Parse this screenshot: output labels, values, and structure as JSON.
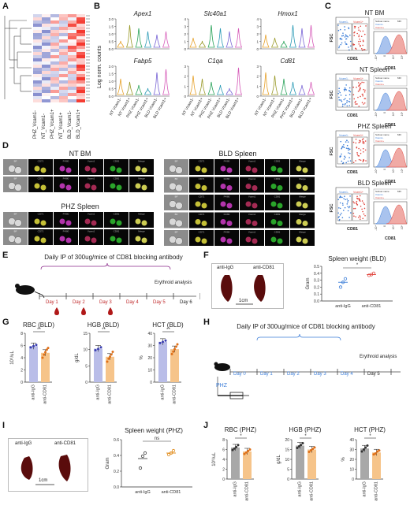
{
  "panel_letters": {
    "A": "A",
    "B": "B",
    "C": "C",
    "D": "D",
    "E": "E",
    "F": "F",
    "G": "G",
    "H": "H",
    "I": "I",
    "J": "J"
  },
  "panelA": {
    "columns": [
      "PHZ_Vcam1-",
      "NT_Vcam1-",
      "PHZ_Vcam1+",
      "NT_Vcam1+",
      "BLD_Vcam1-",
      "BLD_Vcam1+"
    ]
  },
  "panelB": {
    "ylabel": "Log norm. counts",
    "genes": [
      "Apex1",
      "Slc40a1",
      "Hmox1",
      "Fabp5",
      "C1qa",
      "Cd81"
    ],
    "groups": [
      "NT Vcam1-",
      "NT Vcam1+",
      "PHZ Vcam1-",
      "PHZ Vcam1+",
      "BLD Vcam1-",
      "BLD Vcam1+"
    ],
    "yticks": [
      [
        "0.0",
        "0.5",
        "1.0",
        "1.5",
        "2.0"
      ],
      [
        "0",
        "1",
        "2",
        "3",
        "4"
      ],
      [
        "0",
        "1",
        "2",
        "3",
        "4"
      ],
      [
        "0.0",
        "0.5",
        "1.0",
        "1.5",
        "2.0"
      ],
      [
        "0",
        "1",
        "2",
        "3"
      ],
      [
        "0",
        "1",
        "2",
        "3"
      ]
    ],
    "colors": [
      "#e6a12a",
      "#9a9a2a",
      "#2aa35a",
      "#2a9ab5",
      "#7a66d6",
      "#d65ab8"
    ]
  },
  "panelC": {
    "titles": [
      "NT BM",
      "NT Spleen",
      "PHZ Spleen",
      "BLD Spleen"
    ],
    "x_axis": "CD81",
    "y_axis": "FSC",
    "gate_neg": "Vcam1-",
    "gate_pos": "Vcam1+",
    "hist_ticks": [
      "-10⁴",
      "0",
      "10⁴",
      "10⁵"
    ],
    "table_header": [
      "Subset name",
      "MFI"
    ],
    "colors": {
      "neg": "#3b7dd8",
      "pos": "#e0443c"
    }
  },
  "panelD": {
    "titles": [
      "NT BM",
      "BLD Spleen",
      "PHZ Spleen"
    ],
    "channels": [
      "BF",
      "CD71",
      "F4/80",
      "Vcam1",
      "CD81",
      "Merge"
    ]
  },
  "panelE": {
    "title": "Daily IP of 300ug/mice of CD81 blocking antibody",
    "days": [
      "Day 1",
      "Day 2",
      "Day 3",
      "Day 4",
      "Day 5",
      "Day 6"
    ],
    "analysis": "Erythroid analysis"
  },
  "panelF": {
    "photo_labels": [
      "anti-IgG",
      "anti-CD81"
    ],
    "scale": "1cm",
    "chart_data": {
      "type": "scatter",
      "title": "Spleen weight (BLD)",
      "ylabel": "Gram",
      "categories": [
        "anti-IgG",
        "anti-CD81"
      ],
      "yticks": [
        "0.0",
        "0.1",
        "0.2",
        "0.3",
        "0.4",
        "0.5"
      ],
      "ylim": [
        0,
        0.5
      ],
      "points": [
        [
          0.2,
          0.27,
          0.32
        ],
        [
          0.37,
          0.38,
          0.4
        ]
      ],
      "means": [
        0.27,
        0.38
      ],
      "significance": "*",
      "colors": [
        "#3b7dd8",
        "#e0443c"
      ]
    }
  },
  "panelG": {
    "chart_data": [
      {
        "type": "bar",
        "title": "RBC (BLD)",
        "ylabel": "10⁹/uL",
        "categories": [
          "anti-IgG",
          "anti-CD81"
        ],
        "yticks": [
          "0",
          "2",
          "4",
          "6",
          "8"
        ],
        "ylim": [
          0,
          8
        ],
        "values": [
          5.9,
          4.8
        ],
        "points": [
          [
            5.7,
            5.9,
            6.1
          ],
          [
            4.0,
            4.5,
            4.9,
            5.3,
            5.6
          ]
        ],
        "significance": "**"
      },
      {
        "type": "bar",
        "title": "HGB (BLD)",
        "ylabel": "g/dL",
        "categories": [
          "anti-IgG",
          "anti-CD81"
        ],
        "yticks": [
          "0",
          "5",
          "10",
          "15"
        ],
        "ylim": [
          0,
          15
        ],
        "values": [
          10.3,
          7.8
        ],
        "points": [
          [
            9.8,
            10.2,
            10.7
          ],
          [
            6.3,
            7.2,
            7.8,
            8.5,
            9.3
          ]
        ],
        "significance": "**"
      },
      {
        "type": "bar",
        "title": "HCT (BLD)",
        "ylabel": "%",
        "categories": [
          "anti-IgG",
          "anti-CD81"
        ],
        "yticks": [
          "0",
          "10",
          "20",
          "30",
          "40"
        ],
        "ylim": [
          0,
          40
        ],
        "values": [
          33,
          27
        ],
        "points": [
          [
            32,
            33,
            34
          ],
          [
            23,
            25,
            27,
            29,
            31
          ]
        ],
        "significance": "**"
      }
    ],
    "colors": [
      "#b9bde8",
      "#f6c48a"
    ],
    "dot_colors": [
      "#3b3fb0",
      "#e07018"
    ]
  },
  "panelH": {
    "title": "Daily IP of 300ug/mice of CD81 blocking antibody",
    "days": [
      "Day 0",
      "Day 1",
      "Day 2",
      "Day 3",
      "Day 4",
      "Day 5"
    ],
    "analysis": "Erythroid analysis",
    "drug": "PHZ"
  },
  "panelI": {
    "photo_labels": [
      "anti-IgG",
      "anti-CD81"
    ],
    "scale": "1cm",
    "chart_data": {
      "type": "scatter",
      "title": "Spleen weight (PHZ)",
      "ylabel": "Gram",
      "categories": [
        "anti-IgG",
        "anti-CD81"
      ],
      "yticks": [
        "0.0",
        "0.2",
        "0.4",
        "0.6"
      ],
      "ylim": [
        0,
        0.6
      ],
      "points": [
        [
          0.24,
          0.39,
          0.43
        ],
        [
          0.41,
          0.43,
          0.46
        ]
      ],
      "means": [
        0.36,
        0.43
      ],
      "significance": "ns",
      "colors": [
        "#444444",
        "#e08a18"
      ]
    }
  },
  "panelJ": {
    "chart_data": [
      {
        "type": "bar",
        "title": "RBC (PHZ)",
        "ylabel": "10⁹/uL",
        "categories": [
          "anti-IgG",
          "anti-CD81"
        ],
        "yticks": [
          "0",
          "2",
          "4",
          "6",
          "8"
        ],
        "ylim": [
          0,
          8
        ],
        "values": [
          6.4,
          5.6
        ],
        "points": [
          [
            5.9,
            6.2,
            6.5,
            6.9
          ],
          [
            5.1,
            5.4,
            5.7,
            6.0
          ]
        ],
        "significance": "*"
      },
      {
        "type": "bar",
        "title": "HGB (PHZ)",
        "ylabel": "g/dL",
        "categories": [
          "anti-IgG",
          "anti-CD81"
        ],
        "yticks": [
          "0",
          "5",
          "10",
          "15",
          "20"
        ],
        "ylim": [
          0,
          20
        ],
        "values": [
          17,
          15
        ],
        "points": [
          [
            15.8,
            16.6,
            17.3,
            18.2
          ],
          [
            13.8,
            14.6,
            15.3,
            16.0
          ]
        ],
        "significance": "*"
      },
      {
        "type": "bar",
        "title": "HCT (PHZ)",
        "ylabel": "%",
        "categories": [
          "anti-IgG",
          "anti-CD81"
        ],
        "yticks": [
          "0",
          "10",
          "20",
          "30",
          "40"
        ],
        "ylim": [
          0,
          40
        ],
        "values": [
          31,
          27
        ],
        "points": [
          [
            28,
            30,
            32,
            34
          ],
          [
            25,
            26,
            28,
            29
          ]
        ],
        "significance": "*"
      }
    ],
    "colors": [
      "#a8a8a8",
      "#f6c48a"
    ],
    "dot_colors": [
      "#333333",
      "#e07018"
    ]
  }
}
